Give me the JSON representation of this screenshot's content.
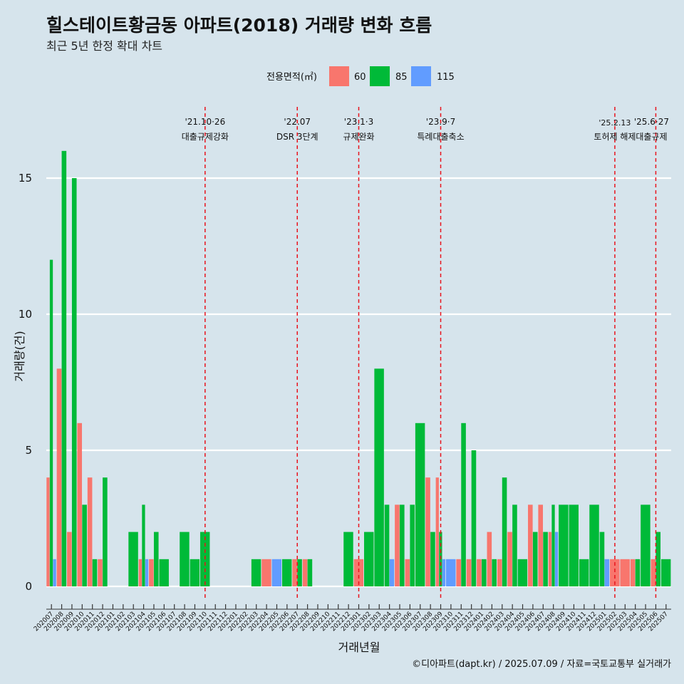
{
  "header": {
    "title": "힐스테이트황금동 아파트(2018) 거래량 변화 흐름",
    "subtitle": "최근 5년 한정 확대 차트"
  },
  "caption": "©디아파트(dapt.kr) / 2025.07.09 / 자료=국토교통부 실거래가",
  "chart_data": {
    "type": "bar",
    "xlabel": "거래년월",
    "ylabel": "거래량(건)",
    "ylim": [
      0,
      17
    ],
    "yticks": [
      0,
      5,
      10,
      15
    ],
    "grid": true,
    "legend": {
      "title": "전용면적(㎡)",
      "position": "top",
      "entries": [
        {
          "name": "60",
          "color": "#F8766D"
        },
        {
          "name": "85",
          "color": "#00BA38"
        },
        {
          "name": "115",
          "color": "#619CFF"
        }
      ]
    },
    "categories": [
      "202007",
      "202008",
      "202009",
      "202010",
      "202011",
      "202012",
      "202101",
      "202102",
      "202103",
      "202104",
      "202105",
      "202106",
      "202107",
      "202108",
      "202109",
      "202110",
      "202111",
      "202112",
      "202201",
      "202202",
      "202203",
      "202204",
      "202205",
      "202206",
      "202207",
      "202208",
      "202209",
      "202210",
      "202211",
      "202212",
      "202301",
      "202302",
      "202303",
      "202304",
      "202305",
      "202306",
      "202307",
      "202308",
      "202309",
      "202310",
      "202311",
      "202312",
      "202401",
      "202402",
      "202403",
      "202404",
      "202405",
      "202406",
      "202407",
      "202408",
      "202409",
      "202410",
      "202411",
      "202412",
      "202501",
      "202502",
      "202503",
      "202504",
      "202505",
      "202506",
      "202507"
    ],
    "series": [
      {
        "name": "60",
        "color": "#F8766D",
        "values": [
          4,
          8,
          2,
          6,
          4,
          1,
          0,
          0,
          0,
          1,
          1,
          0,
          0,
          0,
          0,
          0,
          0,
          0,
          0,
          0,
          0,
          1,
          0,
          0,
          1,
          1,
          0,
          0,
          0,
          0,
          1,
          0,
          0,
          0,
          3,
          1,
          0,
          4,
          4,
          0,
          1,
          1,
          1,
          2,
          1,
          2,
          0,
          3,
          3,
          2,
          0,
          0,
          0,
          0,
          0,
          1,
          1,
          1,
          0,
          1,
          0
        ]
      },
      {
        "name": "85",
        "color": "#00BA38",
        "values": [
          12,
          16,
          15,
          3,
          1,
          4,
          0,
          0,
          2,
          3,
          2,
          1,
          0,
          2,
          1,
          2,
          0,
          0,
          0,
          0,
          1,
          0,
          0,
          1,
          1,
          1,
          0,
          0,
          0,
          2,
          0,
          2,
          8,
          3,
          3,
          3,
          6,
          2,
          2,
          0,
          6,
          5,
          1,
          1,
          4,
          3,
          1,
          2,
          2,
          3,
          3,
          3,
          1,
          3,
          2,
          0,
          0,
          1,
          3,
          2,
          1
        ]
      },
      {
        "name": "115",
        "color": "#619CFF",
        "values": [
          1,
          0,
          0,
          0,
          0,
          0,
          0,
          0,
          0,
          1,
          0,
          0,
          0,
          0,
          0,
          0,
          0,
          0,
          0,
          0,
          0,
          0,
          1,
          0,
          0,
          0,
          0,
          0,
          0,
          0,
          0,
          0,
          0,
          1,
          0,
          0,
          0,
          0,
          1,
          1,
          0,
          0,
          0,
          0,
          0,
          0,
          0,
          0,
          0,
          2,
          0,
          0,
          0,
          0,
          1,
          0,
          0,
          0,
          0,
          0,
          0
        ]
      }
    ],
    "annotations": [
      {
        "at": "202110",
        "date": "'21.10·26",
        "label": "대출규제강화"
      },
      {
        "at": "202207",
        "date": "'22.07",
        "label": "DSR 3단계"
      },
      {
        "at": "202301",
        "date": "'23.1·3",
        "label": "규제완화"
      },
      {
        "at": "202309",
        "date": "'23.9·7",
        "label": "특례대출축소"
      },
      {
        "at": "202502",
        "date": "'25.2.13",
        "label": "토허제 해제"
      },
      {
        "at": "202506",
        "date": "'25.6·27",
        "label": "대출규제"
      }
    ]
  }
}
